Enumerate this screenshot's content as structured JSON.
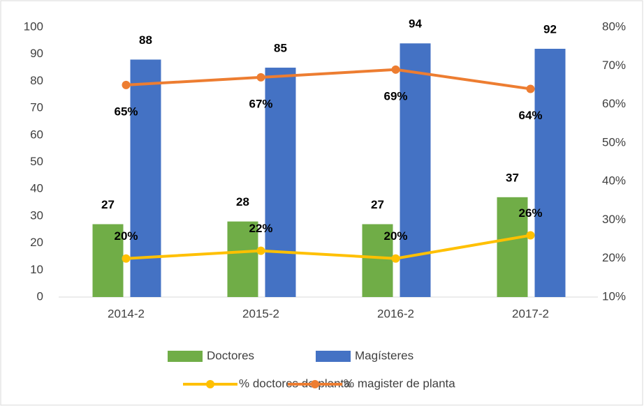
{
  "chart_data": {
    "type": "bar",
    "categories": [
      "2014-2",
      "2015-2",
      "2016-2",
      "2017-2"
    ],
    "series": [
      {
        "name": "Doctores",
        "type": "bar",
        "color": "#70ad47",
        "values": [
          27,
          28,
          27,
          37
        ]
      },
      {
        "name": "Magísteres",
        "type": "bar",
        "color": "#4472c4",
        "values": [
          88,
          85,
          94,
          92
        ]
      },
      {
        "name": "% doctores de planta",
        "type": "line",
        "axis": "y2",
        "color": "#ffc000",
        "values": [
          20,
          22,
          20,
          26
        ],
        "value_labels": [
          "20%",
          "22%",
          "20%",
          "26%"
        ]
      },
      {
        "name": "% magister de planta",
        "type": "line",
        "axis": "y2",
        "color": "#ed7d31",
        "values": [
          65,
          67,
          69,
          64
        ],
        "value_labels": [
          "65%",
          "67%",
          "69%",
          "64%"
        ]
      }
    ],
    "ylim": [
      0,
      100
    ],
    "yticks": [
      0,
      10,
      20,
      30,
      40,
      50,
      60,
      70,
      80,
      90,
      100
    ],
    "y2lim": [
      10,
      80
    ],
    "y2ticks": [
      {
        "value": 10,
        "label": "10%"
      },
      {
        "value": 20,
        "label": "20%"
      },
      {
        "value": 30,
        "label": "30%"
      },
      {
        "value": 40,
        "label": "40%"
      },
      {
        "value": 50,
        "label": "50%"
      },
      {
        "value": 60,
        "label": "60%"
      },
      {
        "value": 70,
        "label": "70%"
      },
      {
        "value": 80,
        "label": "80%"
      }
    ],
    "legend": "bottom"
  }
}
